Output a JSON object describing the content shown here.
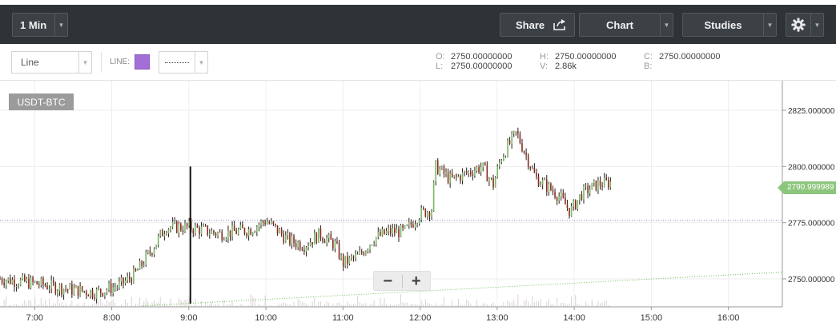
{
  "toolbar": {
    "interval_label": "1 Min",
    "share_label": "Share",
    "chart_label": "Chart",
    "studies_label": "Studies",
    "icons": {
      "share": "share-icon",
      "settings": "gear-icon",
      "dropdown": "chevron-down-icon"
    }
  },
  "subbar": {
    "chart_type_value": "Line",
    "line_label": "LINE:",
    "line_color": "#a36fd6",
    "line_style": "dotted"
  },
  "ohlc": {
    "o_key": "O:",
    "o_val": "2750.00000000",
    "h_key": "H:",
    "h_val": "2750.00000000",
    "c_key": "C:",
    "c_val": "2750.00000000",
    "l_key": "L:",
    "l_val": "2750.00000000",
    "v_key": "V:",
    "v_val": "2.86k",
    "b_key": "B:",
    "b_val": ""
  },
  "chart": {
    "symbol": "USDT-BTC",
    "current_price_label": "2790.999989",
    "zoom_out": "−",
    "zoom_in": "+"
  },
  "colors": {
    "up_candle": "#7bb86a",
    "down_candle": "#8b2a1e",
    "wick": "#2b1a12",
    "reference_line": "#7a86c8",
    "trend_line": "#6fbe5b",
    "price_tag": "#8cc57c"
  },
  "chart_data": {
    "type": "candlestick",
    "symbol": "USDT-BTC",
    "y_ticks": [
      "2825.000000",
      "2800.000000",
      "2775.000000",
      "2750.000000"
    ],
    "x_ticks": [
      "7:00",
      "8:00",
      "9:00",
      "10:00",
      "11:00",
      "12:00",
      "13:00",
      "14:00",
      "15:00",
      "16:00"
    ],
    "ylim": [
      2738,
      2838
    ],
    "x_range_hours": [
      6.55,
      16.7
    ],
    "data_end_hour": 14.48,
    "reference_price": 2776,
    "current_price": 2790.999989,
    "trend_line": {
      "from": [
        8.4,
        2738
      ],
      "to": [
        16.7,
        2753
      ]
    },
    "volume_series": "gray bars along bottom",
    "price_path_keypoints": [
      [
        6.55,
        2750
      ],
      [
        7.0,
        2748
      ],
      [
        7.5,
        2745
      ],
      [
        7.8,
        2744
      ],
      [
        8.1,
        2747
      ],
      [
        8.3,
        2752
      ],
      [
        8.5,
        2762
      ],
      [
        8.7,
        2773
      ],
      [
        9.0,
        2773
      ],
      [
        9.4,
        2770
      ],
      [
        9.8,
        2772
      ],
      [
        10.0,
        2776
      ],
      [
        10.3,
        2767
      ],
      [
        10.5,
        2765
      ],
      [
        10.7,
        2770
      ],
      [
        10.9,
        2765
      ],
      [
        11.0,
        2757
      ],
      [
        11.2,
        2760
      ],
      [
        11.4,
        2768
      ],
      [
        11.6,
        2771
      ],
      [
        11.8,
        2771
      ],
      [
        12.0,
        2779
      ],
      [
        12.15,
        2781
      ],
      [
        12.2,
        2800
      ],
      [
        12.4,
        2794
      ],
      [
        12.6,
        2797
      ],
      [
        12.8,
        2800
      ],
      [
        12.95,
        2792
      ],
      [
        13.05,
        2804
      ],
      [
        13.25,
        2815
      ],
      [
        13.35,
        2807
      ],
      [
        13.5,
        2795
      ],
      [
        13.65,
        2791
      ],
      [
        13.8,
        2787
      ],
      [
        13.95,
        2780
      ],
      [
        14.1,
        2788
      ],
      [
        14.3,
        2792
      ],
      [
        14.48,
        2793
      ]
    ]
  }
}
